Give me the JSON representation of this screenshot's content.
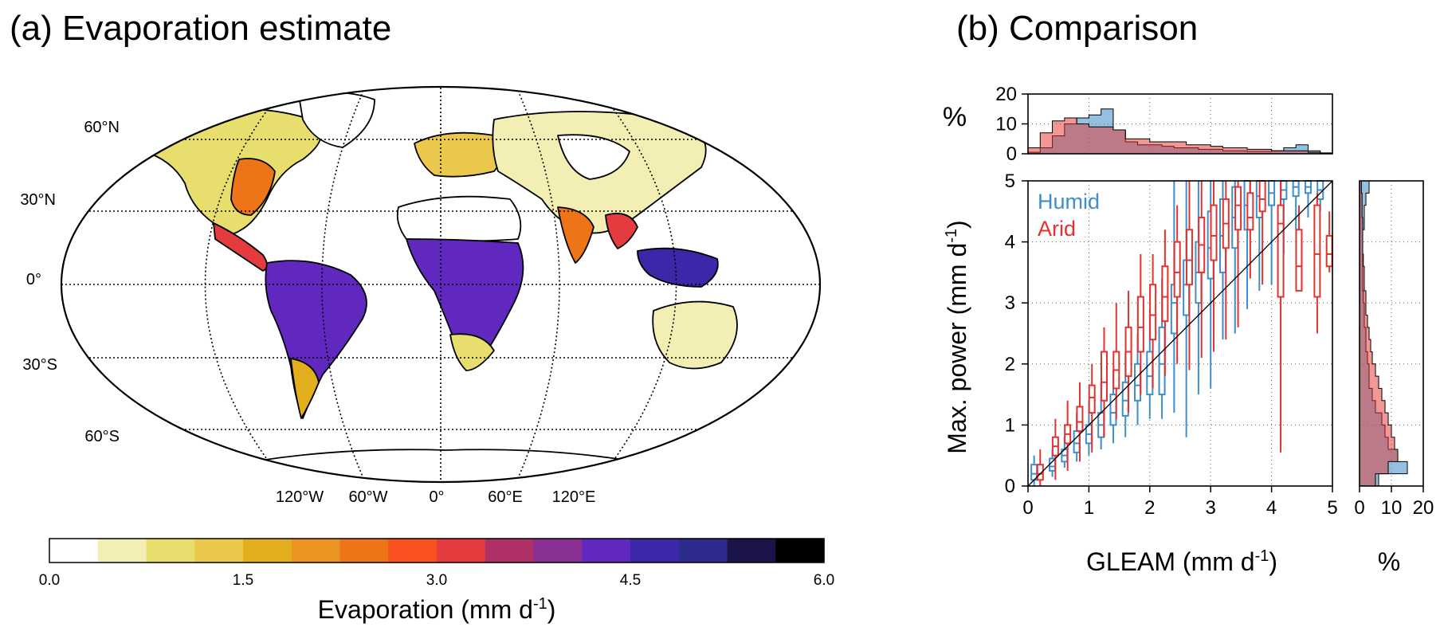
{
  "panel_a": {
    "title": "(a) Evaporation estimate",
    "lat_labels": [
      "60°N",
      "30°N",
      "0°",
      "30°S",
      "60°S"
    ],
    "lon_labels": [
      "120°W",
      "60°W",
      "0°",
      "60°E",
      "120°E"
    ],
    "colorbar": {
      "ticks": [
        "0.0",
        "1.5",
        "3.0",
        "4.5",
        "6.0"
      ],
      "label_main": "Evaporation (mm d",
      "label_sup": "-1",
      "label_close": ")",
      "range": [
        0,
        6
      ],
      "colors": [
        "#ffffff",
        "#f3efb4",
        "#e8de6e",
        "#e9c84b",
        "#e3ae1e",
        "#ec9420",
        "#ee7418",
        "#fb501f",
        "#e43c3e",
        "#b03068",
        "#8a2f93",
        "#6128c0",
        "#3b27a8",
        "#2d2b8d",
        "#1a1448",
        "#000000"
      ]
    }
  },
  "panel_b": {
    "title": "(b) Comparison",
    "ylabel_main": "Max. power (mm d",
    "ylabel_sup": "-1",
    "ylabel_close": ")",
    "xlabel_main": "GLEAM (mm d",
    "xlabel_sup": "-1",
    "xlabel_close": ")",
    "top_hist_label": "%",
    "right_hist_label": "%",
    "legend": [
      {
        "name": "Humid",
        "color": "#3d8ec9"
      },
      {
        "name": "Arid",
        "color": "#e3322f"
      }
    ]
  },
  "chart_data": [
    {
      "type": "map",
      "title": "(a) Evaporation estimate",
      "colorbar_label": "Evaporation (mm d-1)",
      "colorbar_range": [
        0,
        6
      ],
      "colorbar_steps": 16
    },
    {
      "type": "box",
      "title": "(b) Comparison",
      "xlabel": "GLEAM (mm d-1)",
      "ylabel": "Max. power (mm d-1)",
      "xlim": [
        0,
        5
      ],
      "ylim": [
        0,
        5
      ],
      "xticks": [
        "0",
        "1",
        "2",
        "3",
        "4",
        "5"
      ],
      "yticks": [
        "0",
        "1",
        "2",
        "3",
        "4",
        "5"
      ],
      "grid": true,
      "one_to_one_line": true,
      "series": [
        {
          "name": "Humid",
          "color": "#3d8ec9",
          "boxes": [
            {
              "x": 0.1,
              "wlo": 0.0,
              "q1": 0.1,
              "med": 0.2,
              "q3": 0.35,
              "whi": 0.5
            },
            {
              "x": 0.4,
              "wlo": 0.15,
              "q1": 0.25,
              "med": 0.32,
              "q3": 0.45,
              "whi": 0.6
            },
            {
              "x": 0.6,
              "wlo": 0.3,
              "q1": 0.4,
              "med": 0.5,
              "q3": 0.6,
              "whi": 0.8
            },
            {
              "x": 0.8,
              "wlo": 0.4,
              "q1": 0.55,
              "med": 0.7,
              "q3": 0.9,
              "whi": 1.2
            },
            {
              "x": 1.0,
              "wlo": 0.5,
              "q1": 0.7,
              "med": 0.85,
              "q3": 1.0,
              "whi": 1.4
            },
            {
              "x": 1.2,
              "wlo": 0.6,
              "q1": 0.8,
              "med": 1.0,
              "q3": 1.2,
              "whi": 1.7
            },
            {
              "x": 1.4,
              "wlo": 0.7,
              "q1": 1.0,
              "med": 1.2,
              "q3": 1.5,
              "whi": 1.9
            },
            {
              "x": 1.6,
              "wlo": 0.8,
              "q1": 1.15,
              "med": 1.4,
              "q3": 1.7,
              "whi": 2.2
            },
            {
              "x": 1.8,
              "wlo": 1.0,
              "q1": 1.4,
              "med": 1.65,
              "q3": 2.0,
              "whi": 2.5
            },
            {
              "x": 2.0,
              "wlo": 1.1,
              "q1": 1.5,
              "med": 1.8,
              "q3": 2.2,
              "whi": 2.9
            },
            {
              "x": 2.2,
              "wlo": 1.1,
              "q1": 1.5,
              "med": 2.0,
              "q3": 2.6,
              "whi": 3.4
            },
            {
              "x": 2.4,
              "wlo": 1.2,
              "q1": 2.5,
              "med": 3.0,
              "q3": 3.3,
              "whi": 5.0
            },
            {
              "x": 2.6,
              "wlo": 0.8,
              "q1": 2.8,
              "med": 3.3,
              "q3": 3.7,
              "whi": 5.0
            },
            {
              "x": 2.8,
              "wlo": 1.5,
              "q1": 3.0,
              "med": 3.5,
              "q3": 4.0,
              "whi": 5.0
            },
            {
              "x": 3.0,
              "wlo": 1.6,
              "q1": 3.4,
              "med": 3.9,
              "q3": 4.5,
              "whi": 5.0
            },
            {
              "x": 3.2,
              "wlo": 2.4,
              "q1": 3.5,
              "med": 4.1,
              "q3": 4.7,
              "whi": 5.0
            },
            {
              "x": 3.4,
              "wlo": 2.5,
              "q1": 3.9,
              "med": 4.4,
              "q3": 4.9,
              "whi": 5.0
            },
            {
              "x": 3.6,
              "wlo": 2.9,
              "q1": 4.2,
              "med": 4.6,
              "q3": 5.0,
              "whi": 5.0
            },
            {
              "x": 3.8,
              "wlo": 3.2,
              "q1": 4.4,
              "med": 4.75,
              "q3": 5.0,
              "whi": 5.0
            },
            {
              "x": 4.0,
              "wlo": 3.3,
              "q1": 4.6,
              "med": 4.8,
              "q3": 5.0,
              "whi": 5.0
            },
            {
              "x": 4.2,
              "wlo": 3.8,
              "q1": 4.7,
              "med": 4.85,
              "q3": 5.0,
              "whi": 5.0
            },
            {
              "x": 4.4,
              "wlo": 4.2,
              "q1": 4.75,
              "med": 4.9,
              "q3": 5.0,
              "whi": 5.0
            },
            {
              "x": 4.6,
              "wlo": 4.4,
              "q1": 4.8,
              "med": 4.9,
              "q3": 5.0,
              "whi": 5.0
            },
            {
              "x": 4.8,
              "wlo": 4.5,
              "q1": 4.7,
              "med": 4.85,
              "q3": 5.0,
              "whi": 5.0
            }
          ]
        },
        {
          "name": "Arid",
          "color": "#e3322f",
          "boxes": [
            {
              "x": 0.2,
              "wlo": 0.0,
              "q1": 0.1,
              "med": 0.2,
              "q3": 0.35,
              "whi": 0.6
            },
            {
              "x": 0.45,
              "wlo": 0.1,
              "q1": 0.5,
              "med": 0.65,
              "q3": 0.8,
              "whi": 1.1
            },
            {
              "x": 0.65,
              "wlo": 0.25,
              "q1": 0.7,
              "med": 0.85,
              "q3": 1.0,
              "whi": 1.4
            },
            {
              "x": 0.85,
              "wlo": 0.4,
              "q1": 0.9,
              "med": 1.05,
              "q3": 1.3,
              "whi": 1.7
            },
            {
              "x": 1.05,
              "wlo": 0.55,
              "q1": 1.2,
              "med": 1.45,
              "q3": 1.65,
              "whi": 2.0
            },
            {
              "x": 1.25,
              "wlo": 0.8,
              "q1": 1.4,
              "med": 1.7,
              "q3": 2.2,
              "whi": 2.6
            },
            {
              "x": 1.45,
              "wlo": 1.1,
              "q1": 1.6,
              "med": 1.9,
              "q3": 2.2,
              "whi": 3.0
            },
            {
              "x": 1.65,
              "wlo": 1.2,
              "q1": 1.8,
              "med": 2.2,
              "q3": 2.6,
              "whi": 3.2
            },
            {
              "x": 1.85,
              "wlo": 1.5,
              "q1": 2.2,
              "med": 2.6,
              "q3": 3.1,
              "whi": 3.8
            },
            {
              "x": 2.05,
              "wlo": 1.6,
              "q1": 2.4,
              "med": 2.8,
              "q3": 3.3,
              "whi": 3.8
            },
            {
              "x": 2.25,
              "wlo": 1.8,
              "q1": 2.7,
              "med": 3.1,
              "q3": 3.6,
              "whi": 4.2
            },
            {
              "x": 2.45,
              "wlo": 2.0,
              "q1": 3.1,
              "med": 3.5,
              "q3": 4.0,
              "whi": 4.6
            },
            {
              "x": 2.65,
              "wlo": 1.9,
              "q1": 3.3,
              "med": 3.7,
              "q3": 4.2,
              "whi": 5.0
            },
            {
              "x": 2.85,
              "wlo": 2.1,
              "q1": 3.5,
              "med": 3.95,
              "q3": 4.4,
              "whi": 5.0
            },
            {
              "x": 3.05,
              "wlo": 2.2,
              "q1": 3.7,
              "med": 4.1,
              "q3": 4.6,
              "whi": 5.0
            },
            {
              "x": 3.25,
              "wlo": 2.4,
              "q1": 3.9,
              "med": 4.3,
              "q3": 4.7,
              "whi": 5.0
            },
            {
              "x": 3.45,
              "wlo": 2.6,
              "q1": 4.2,
              "med": 4.6,
              "q3": 4.9,
              "whi": 5.0
            },
            {
              "x": 3.65,
              "wlo": 3.4,
              "q1": 4.2,
              "med": 4.4,
              "q3": 4.8,
              "whi": 5.0
            },
            {
              "x": 3.85,
              "wlo": 3.3,
              "q1": 4.5,
              "med": 4.7,
              "q3": 5.0,
              "whi": 5.0
            },
            {
              "x": 4.15,
              "wlo": 0.55,
              "q1": 3.1,
              "med": 4.3,
              "q3": 4.6,
              "whi": 5.0
            },
            {
              "x": 4.45,
              "wlo": 3.7,
              "q1": 3.2,
              "med": 3.6,
              "q3": 4.2,
              "whi": 4.6
            },
            {
              "x": 4.75,
              "wlo": 2.5,
              "q1": 3.1,
              "med": 3.8,
              "q3": 4.6,
              "whi": 4.8
            },
            {
              "x": 4.95,
              "wlo": 3.5,
              "q1": 3.6,
              "med": 3.8,
              "q3": 4.1,
              "whi": 4.5
            }
          ]
        }
      ]
    },
    {
      "type": "bar",
      "title": "",
      "ylabel": "%",
      "ylim": [
        0,
        20
      ],
      "yticks": [
        "0",
        "10",
        "20"
      ],
      "bin_edges": [
        0,
        0.2,
        0.4,
        0.6,
        0.8,
        1.0,
        1.2,
        1.4,
        1.6,
        1.8,
        2.0,
        2.2,
        2.4,
        2.6,
        2.8,
        3.0,
        3.2,
        3.4,
        3.6,
        3.8,
        4.0,
        4.2,
        4.4,
        4.6,
        4.8,
        5.0
      ],
      "series": [
        {
          "name": "Humid",
          "color": "#3d8ec9",
          "values": [
            0.5,
            2,
            6,
            10,
            12,
            13,
            15,
            8,
            4,
            3,
            3,
            2.5,
            2,
            2,
            1.5,
            1.5,
            1,
            1,
            0.8,
            0.8,
            1,
            2,
            3,
            1,
            0.3
          ]
        },
        {
          "name": "Arid",
          "color": "#e3322f",
          "values": [
            2,
            7,
            11,
            12,
            10,
            9,
            9,
            8,
            5,
            5,
            4,
            4,
            4,
            3,
            3,
            2.5,
            2,
            2,
            1.5,
            1.5,
            1,
            1,
            1,
            0.5,
            0.2
          ]
        }
      ]
    },
    {
      "type": "bar",
      "orientation": "horizontal",
      "title": "",
      "xlabel": "%",
      "xlim": [
        0,
        20
      ],
      "xticks": [
        "0",
        "10",
        "20"
      ],
      "bin_edges": [
        0,
        0.2,
        0.4,
        0.6,
        0.8,
        1.0,
        1.2,
        1.4,
        1.6,
        1.8,
        2.0,
        2.2,
        2.4,
        2.6,
        2.8,
        3.0,
        3.2,
        3.4,
        3.6,
        3.8,
        4.0,
        4.2,
        4.4,
        4.6,
        4.8,
        5.0
      ],
      "series": [
        {
          "name": "Humid",
          "color": "#3d8ec9",
          "values": [
            6,
            15,
            12,
            9,
            8,
            7,
            5,
            4,
            3,
            3,
            2.5,
            2,
            2,
            1.5,
            1.5,
            1.2,
            1,
            1,
            1,
            1,
            1,
            1.5,
            1.5,
            2,
            3
          ]
        },
        {
          "name": "Arid",
          "color": "#e3322f",
          "values": [
            5,
            9,
            12,
            11,
            10,
            9,
            8,
            7,
            6,
            5,
            4,
            3.5,
            3,
            2.5,
            2,
            2,
            1.5,
            1.5,
            1.2,
            1,
            1,
            1,
            0.8,
            0.8,
            0.6
          ]
        }
      ]
    }
  ]
}
